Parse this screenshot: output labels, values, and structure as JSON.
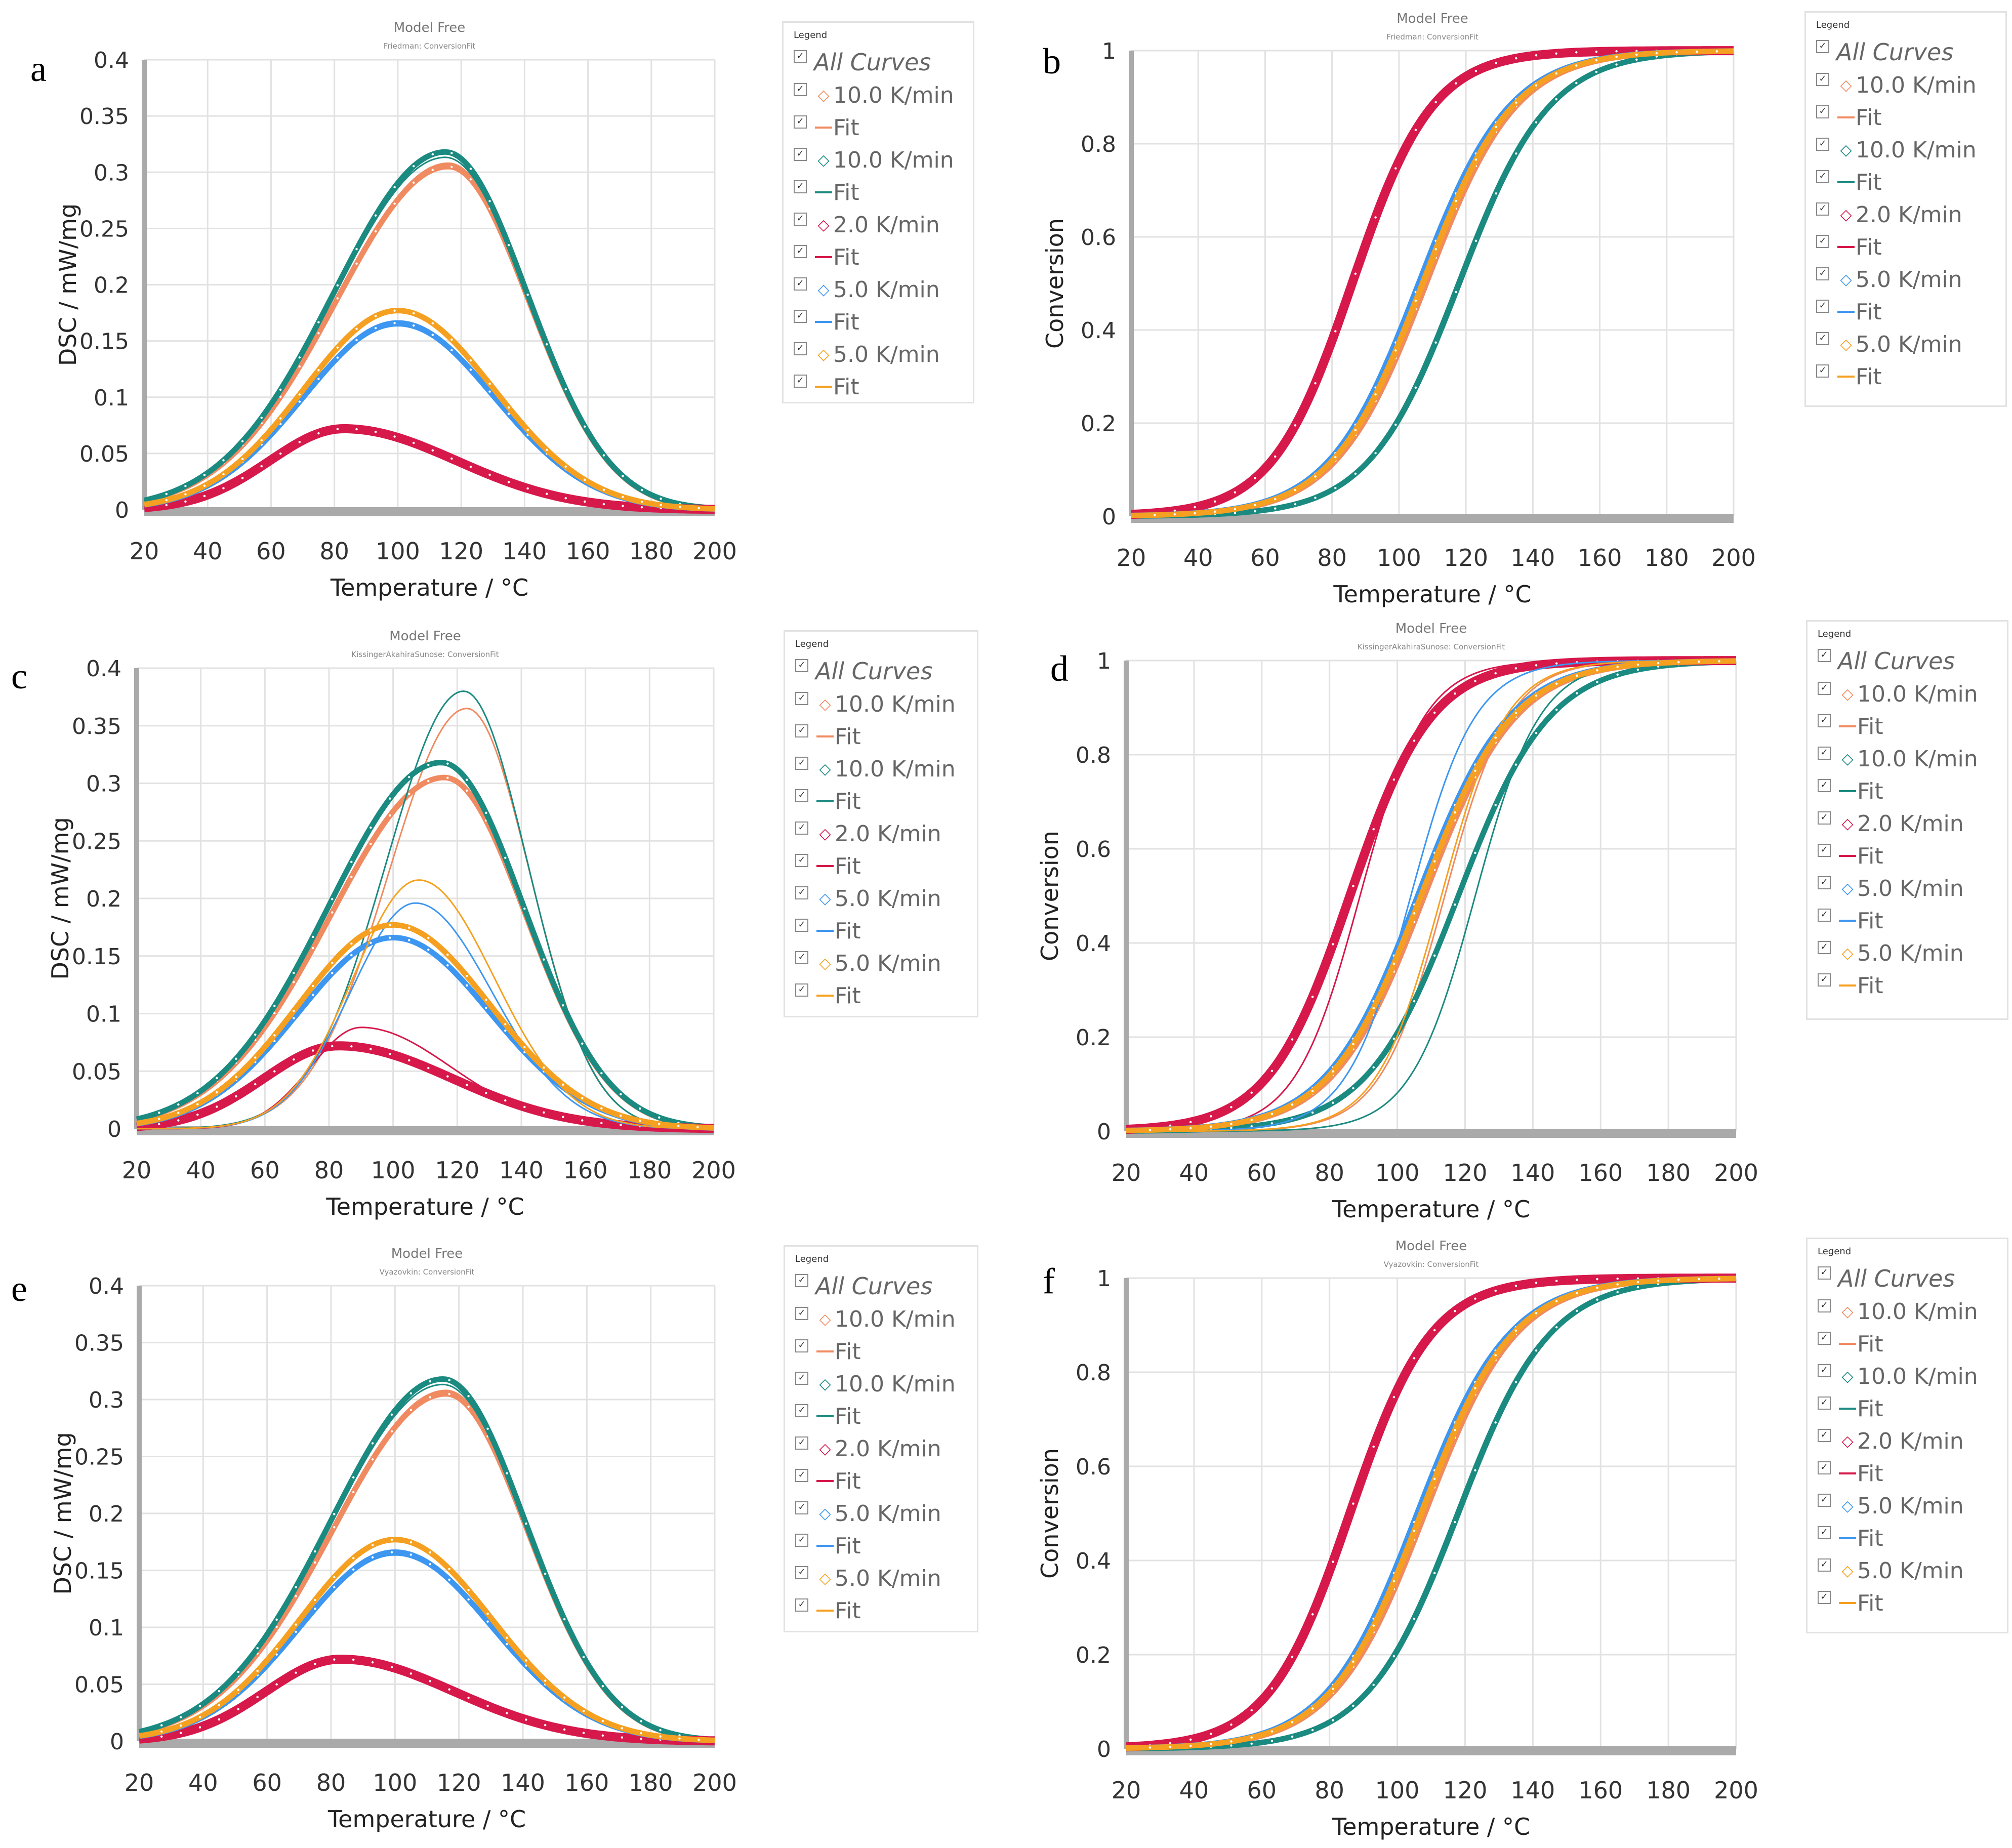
{
  "panels": [
    {
      "letter": "a",
      "title": "Model Free",
      "subtitle": "Friedman: ConversionFit",
      "type": "dsc",
      "method": "friedman"
    },
    {
      "letter": "b",
      "title": "Model Free",
      "subtitle": "Friedman: ConversionFit",
      "type": "conv",
      "method": "friedman"
    },
    {
      "letter": "c",
      "title": "Model Free",
      "subtitle": "KissingerAkahiraSunose: ConversionFit",
      "type": "dsc",
      "method": "kas"
    },
    {
      "letter": "d",
      "title": "Model Free",
      "subtitle": "KissingerAkahiraSunose: ConversionFit",
      "type": "conv",
      "method": "kas"
    },
    {
      "letter": "e",
      "title": "Model Free",
      "subtitle": "Vyazovkin: ConversionFit",
      "type": "dsc",
      "method": "vyazovkin"
    },
    {
      "letter": "f",
      "title": "Model Free",
      "subtitle": "Vyazovkin: ConversionFit",
      "type": "conv",
      "method": "vyazovkin"
    }
  ],
  "legend": {
    "title": "Legend",
    "all_label": "All Curves",
    "entries": [
      {
        "label": "10.0 K/min",
        "kind": "marker",
        "color": "#f08a60"
      },
      {
        "label": "Fit",
        "kind": "line",
        "color": "#f08a60"
      },
      {
        "label": "10.0 K/min",
        "kind": "marker",
        "color": "#1b8a80"
      },
      {
        "label": "Fit",
        "kind": "line",
        "color": "#1b8a80"
      },
      {
        "label": "2.0 K/min",
        "kind": "marker",
        "color": "#d6184a"
      },
      {
        "label": "Fit",
        "kind": "line",
        "color": "#d6184a"
      },
      {
        "label": "5.0 K/min",
        "kind": "marker",
        "color": "#3d96f0"
      },
      {
        "label": "Fit",
        "kind": "line",
        "color": "#3d96f0"
      },
      {
        "label": "5.0 K/min",
        "kind": "marker",
        "color": "#f5a020"
      },
      {
        "label": "Fit",
        "kind": "line",
        "color": "#f5a020"
      }
    ],
    "marker_glyph": "◇",
    "check_glyph": "✓"
  },
  "chart_data": [
    {
      "panel": "a",
      "type": "line",
      "title": "Model Free",
      "subtitle": "Friedman: ConversionFit",
      "xlabel": "Temperature / °C",
      "ylabel": "DSC / mW/mg",
      "xlim": [
        20,
        200
      ],
      "ylim": [
        0,
        0.4
      ],
      "xticks": [
        "20",
        "40",
        "60",
        "80",
        "100",
        "120",
        "140",
        "160",
        "180",
        "200"
      ],
      "yticks": [
        "0",
        "0.05",
        "0.1",
        "0.15",
        "0.2",
        "0.25",
        "0.3",
        "0.35",
        "0.4"
      ],
      "series": [
        {
          "name": "10.0 K/min",
          "color": "#f08a60",
          "peak_x": 116,
          "peak_y": 0.305
        },
        {
          "name": "10.0 K/min",
          "color": "#1b8a80",
          "peak_x": 115,
          "peak_y": 0.318
        },
        {
          "name": "2.0 K/min",
          "color": "#d6184a",
          "peak_x": 83,
          "peak_y": 0.072
        },
        {
          "name": "5.0 K/min",
          "color": "#3d96f0",
          "peak_x": 100,
          "peak_y": 0.166
        },
        {
          "name": "5.0 K/min",
          "color": "#f5a020",
          "peak_x": 100,
          "peak_y": 0.177
        }
      ]
    },
    {
      "panel": "b",
      "type": "line",
      "title": "Model Free",
      "subtitle": "Friedman: ConversionFit",
      "xlabel": "Temperature / °C",
      "ylabel": "Conversion",
      "xlim": [
        20,
        200
      ],
      "ylim": [
        0,
        1
      ],
      "xticks": [
        "20",
        "40",
        "60",
        "80",
        "100",
        "120",
        "140",
        "160",
        "180",
        "200"
      ],
      "yticks": [
        "0",
        "0.2",
        "0.4",
        "0.6",
        "0.8",
        "1"
      ],
      "series": [
        {
          "name": "10.0 K/min",
          "color": "#f08a60",
          "midpoint_x": 108
        },
        {
          "name": "10.0 K/min",
          "color": "#1b8a80",
          "midpoint_x": 118
        },
        {
          "name": "2.0 K/min",
          "color": "#d6184a",
          "midpoint_x": 86
        },
        {
          "name": "5.0 K/min",
          "color": "#3d96f0",
          "midpoint_x": 106
        },
        {
          "name": "5.0 K/min",
          "color": "#f5a020",
          "midpoint_x": 107
        }
      ]
    },
    {
      "panel": "c",
      "type": "line",
      "title": "Model Free",
      "subtitle": "KissingerAkahiraSunose: ConversionFit",
      "xlabel": "Temperature / °C",
      "ylabel": "DSC / mW/mg",
      "xlim": [
        20,
        200
      ],
      "ylim": [
        0,
        0.4
      ],
      "xticks": [
        "20",
        "40",
        "60",
        "80",
        "100",
        "120",
        "140",
        "160",
        "180",
        "200"
      ],
      "yticks": [
        "0",
        "0.05",
        "0.1",
        "0.15",
        "0.2",
        "0.25",
        "0.3",
        "0.35",
        "0.4"
      ],
      "series": [
        {
          "name": "10.0 K/min",
          "color": "#f08a60",
          "peak_x": 116,
          "peak_y": 0.305,
          "fit_peak_x": 123,
          "fit_peak_y": 0.365
        },
        {
          "name": "10.0 K/min",
          "color": "#1b8a80",
          "peak_x": 115,
          "peak_y": 0.318,
          "fit_peak_x": 122,
          "fit_peak_y": 0.38
        },
        {
          "name": "2.0 K/min",
          "color": "#d6184a",
          "peak_x": 83,
          "peak_y": 0.072,
          "fit_peak_x": 90,
          "fit_peak_y": 0.088
        },
        {
          "name": "5.0 K/min",
          "color": "#3d96f0",
          "peak_x": 100,
          "peak_y": 0.166,
          "fit_peak_x": 107,
          "fit_peak_y": 0.196
        },
        {
          "name": "5.0 K/min",
          "color": "#f5a020",
          "peak_x": 100,
          "peak_y": 0.177,
          "fit_peak_x": 108,
          "fit_peak_y": 0.216
        }
      ]
    },
    {
      "panel": "d",
      "type": "line",
      "title": "Model Free",
      "subtitle": "KissingerAkahiraSunose: ConversionFit",
      "xlabel": "Temperature / °C",
      "ylabel": "Conversion",
      "xlim": [
        20,
        200
      ],
      "ylim": [
        0,
        1
      ],
      "xticks": [
        "20",
        "40",
        "60",
        "80",
        "100",
        "120",
        "140",
        "160",
        "180",
        "200"
      ],
      "yticks": [
        "0",
        "0.2",
        "0.4",
        "0.6",
        "0.8",
        "1"
      ],
      "series": [
        {
          "name": "10.0 K/min",
          "color": "#f08a60",
          "midpoint_x": 108,
          "fit_midpoint_x": 114
        },
        {
          "name": "10.0 K/min",
          "color": "#1b8a80",
          "midpoint_x": 118,
          "fit_midpoint_x": 123
        },
        {
          "name": "2.0 K/min",
          "color": "#d6184a",
          "midpoint_x": 86,
          "fit_midpoint_x": 89
        },
        {
          "name": "5.0 K/min",
          "color": "#3d96f0",
          "midpoint_x": 106,
          "fit_midpoint_x": 104
        },
        {
          "name": "5.0 K/min",
          "color": "#f5a020",
          "midpoint_x": 107,
          "fit_midpoint_x": 113
        }
      ]
    },
    {
      "panel": "e",
      "type": "line",
      "title": "Model Free",
      "subtitle": "Vyazovkin: ConversionFit",
      "xlabel": "Temperature / °C",
      "ylabel": "DSC / mW/mg",
      "xlim": [
        20,
        200
      ],
      "ylim": [
        0,
        0.4
      ],
      "xticks": [
        "20",
        "40",
        "60",
        "80",
        "100",
        "120",
        "140",
        "160",
        "180",
        "200"
      ],
      "yticks": [
        "0",
        "0.05",
        "0.1",
        "0.15",
        "0.2",
        "0.25",
        "0.3",
        "0.35",
        "0.4"
      ],
      "series": [
        {
          "name": "10.0 K/min",
          "color": "#f08a60",
          "peak_x": 116,
          "peak_y": 0.305
        },
        {
          "name": "10.0 K/min",
          "color": "#1b8a80",
          "peak_x": 115,
          "peak_y": 0.318
        },
        {
          "name": "2.0 K/min",
          "color": "#d6184a",
          "peak_x": 83,
          "peak_y": 0.072
        },
        {
          "name": "5.0 K/min",
          "color": "#3d96f0",
          "peak_x": 100,
          "peak_y": 0.166
        },
        {
          "name": "5.0 K/min",
          "color": "#f5a020",
          "peak_x": 100,
          "peak_y": 0.177
        }
      ]
    },
    {
      "panel": "f",
      "type": "line",
      "title": "Model Free",
      "subtitle": "Vyazovkin: ConversionFit",
      "xlabel": "Temperature / °C",
      "ylabel": "Conversion",
      "xlim": [
        20,
        200
      ],
      "ylim": [
        0,
        1
      ],
      "xticks": [
        "20",
        "40",
        "60",
        "80",
        "100",
        "120",
        "140",
        "160",
        "180",
        "200"
      ],
      "yticks": [
        "0",
        "0.2",
        "0.4",
        "0.6",
        "0.8",
        "1"
      ],
      "series": [
        {
          "name": "10.0 K/min",
          "color": "#f08a60",
          "midpoint_x": 108
        },
        {
          "name": "10.0 K/min",
          "color": "#1b8a80",
          "midpoint_x": 118
        },
        {
          "name": "2.0 K/min",
          "color": "#d6184a",
          "midpoint_x": 86
        },
        {
          "name": "5.0 K/min",
          "color": "#3d96f0",
          "midpoint_x": 106
        },
        {
          "name": "5.0 K/min",
          "color": "#f5a020",
          "midpoint_x": 107
        }
      ]
    }
  ]
}
